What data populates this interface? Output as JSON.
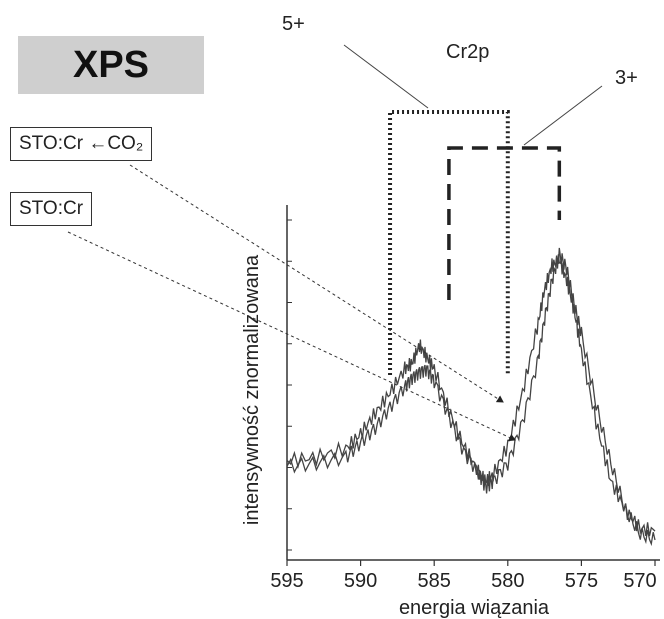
{
  "chart_data": {
    "type": "line",
    "title": "XPS",
    "subtitle": "Cr2p",
    "xlabel": "energia wiązania",
    "ylabel": "intensywność znormalizowana",
    "x_reversed": true,
    "xlim": [
      595,
      570
    ],
    "x_ticks": [
      595,
      590,
      585,
      580,
      575,
      570
    ],
    "y_ticks_count": 9,
    "ylim": [
      0,
      1
    ],
    "series": [
      {
        "name": "STO:Cr ←CO₂",
        "x": [
          595,
          593,
          591,
          590,
          589,
          588,
          587,
          586.5,
          586,
          585.5,
          585,
          584,
          583,
          582,
          581.5,
          581,
          580,
          579,
          578,
          577.5,
          577,
          576.5,
          576,
          575.5,
          575,
          574,
          573,
          572,
          571,
          570
        ],
        "y": [
          0.27,
          0.28,
          0.31,
          0.36,
          0.43,
          0.5,
          0.58,
          0.6,
          0.66,
          0.62,
          0.58,
          0.44,
          0.32,
          0.23,
          0.2,
          0.22,
          0.32,
          0.5,
          0.72,
          0.85,
          0.93,
          0.95,
          0.88,
          0.78,
          0.64,
          0.4,
          0.2,
          0.1,
          0.04,
          0.03
        ]
      },
      {
        "name": "STO:Cr",
        "x": [
          595,
          593,
          591,
          590,
          589,
          588,
          587,
          586.5,
          586,
          585.5,
          585,
          584,
          583,
          582,
          581.5,
          581,
          580,
          579,
          578,
          577.5,
          577,
          576.5,
          576,
          575.5,
          575,
          574,
          573,
          572,
          571,
          570
        ],
        "y": [
          0.25,
          0.26,
          0.28,
          0.33,
          0.38,
          0.45,
          0.52,
          0.55,
          0.57,
          0.58,
          0.54,
          0.42,
          0.3,
          0.23,
          0.18,
          0.2,
          0.26,
          0.4,
          0.6,
          0.75,
          0.88,
          0.97,
          0.92,
          0.8,
          0.7,
          0.46,
          0.26,
          0.1,
          0.02,
          0.0
        ]
      }
    ],
    "annotations": {
      "oxidation_5": {
        "label": "5+",
        "x_from": 588,
        "x_to": 580
      },
      "oxidation_3": {
        "label": "3+",
        "x_from": 584,
        "x_to": 576.5
      }
    },
    "colors": {
      "line": "#444444",
      "box_fill": "#cfcfcf",
      "text": "#222222"
    }
  }
}
